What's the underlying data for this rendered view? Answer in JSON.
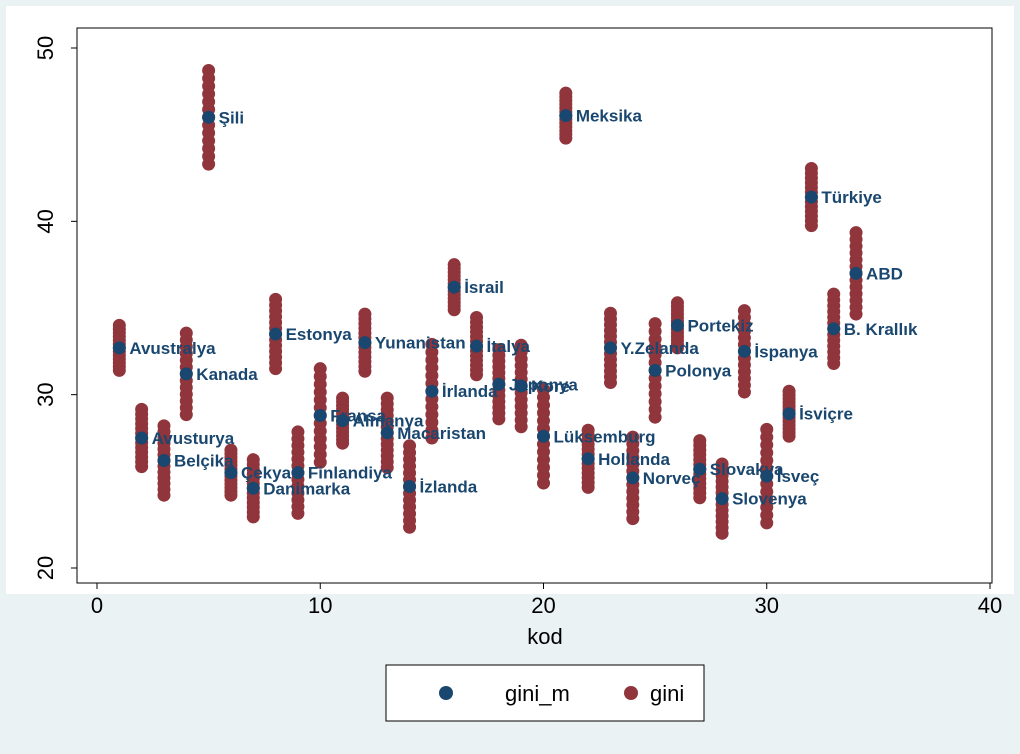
{
  "chart_data": {
    "type": "scatter",
    "xlabel": "kod",
    "ylabel": "",
    "xlim": [
      0,
      40
    ],
    "ylim": [
      20,
      50
    ],
    "xticks": [
      0,
      10,
      20,
      30,
      40
    ],
    "yticks": [
      20,
      30,
      40,
      50
    ],
    "grid": true,
    "legend_position": "bottom",
    "colors": {
      "gini_m": "#1a476f",
      "gini": "#90353b",
      "background": "#eaf2f3",
      "plot_bg": "#ffffff"
    },
    "series": [
      {
        "name": "gini_m",
        "points": [
          {
            "x": 1,
            "y": 32.7,
            "label": "Avustralya"
          },
          {
            "x": 2,
            "y": 27.5,
            "label": "Avusturya"
          },
          {
            "x": 3,
            "y": 26.2,
            "label": "Belçika"
          },
          {
            "x": 4,
            "y": 31.2,
            "label": "Kanada"
          },
          {
            "x": 5,
            "y": 46.0,
            "label": "Şili"
          },
          {
            "x": 6,
            "y": 25.5,
            "label": "Çekya"
          },
          {
            "x": 7,
            "y": 24.6,
            "label": "Danimarka"
          },
          {
            "x": 8,
            "y": 33.5,
            "label": "Estonya"
          },
          {
            "x": 9,
            "y": 25.5,
            "label": "Finlandiya"
          },
          {
            "x": 10,
            "y": 28.8,
            "label": "Fransa"
          },
          {
            "x": 11,
            "y": 28.5,
            "label": "Almanya"
          },
          {
            "x": 12,
            "y": 33.0,
            "label": "Yunanistan"
          },
          {
            "x": 13,
            "y": 27.8,
            "label": "Macaristan"
          },
          {
            "x": 14,
            "y": 24.7,
            "label": "İzlanda"
          },
          {
            "x": 15,
            "y": 30.2,
            "label": "İrlanda"
          },
          {
            "x": 16,
            "y": 36.2,
            "label": "İsrail"
          },
          {
            "x": 17,
            "y": 32.8,
            "label": "İtalya"
          },
          {
            "x": 18,
            "y": 30.6,
            "label": "Japonya"
          },
          {
            "x": 19,
            "y": 30.5,
            "label": "Kore"
          },
          {
            "x": 20,
            "y": 27.6,
            "label": "Lüksemburg"
          },
          {
            "x": 21,
            "y": 46.1,
            "label": "Meksika"
          },
          {
            "x": 22,
            "y": 26.3,
            "label": "Hollanda"
          },
          {
            "x": 23,
            "y": 32.7,
            "label": "Y.Zelanda"
          },
          {
            "x": 24,
            "y": 25.2,
            "label": "Norveç"
          },
          {
            "x": 25,
            "y": 31.4,
            "label": "Polonya"
          },
          {
            "x": 26,
            "y": 34.0,
            "label": "Portekiz"
          },
          {
            "x": 27,
            "y": 25.7,
            "label": "Slovakya"
          },
          {
            "x": 28,
            "y": 24.0,
            "label": "Slovenya"
          },
          {
            "x": 29,
            "y": 32.5,
            "label": "İspanya"
          },
          {
            "x": 30,
            "y": 25.3,
            "label": "İsveç"
          },
          {
            "x": 31,
            "y": 28.9,
            "label": "İsviçre"
          },
          {
            "x": 32,
            "y": 41.4,
            "label": "Türkiye"
          },
          {
            "x": 33,
            "y": 33.8,
            "label": "B. Krallık"
          },
          {
            "x": 34,
            "y": 37.0,
            "label": "ABD"
          }
        ]
      },
      {
        "name": "gini",
        "points": []
      }
    ]
  }
}
